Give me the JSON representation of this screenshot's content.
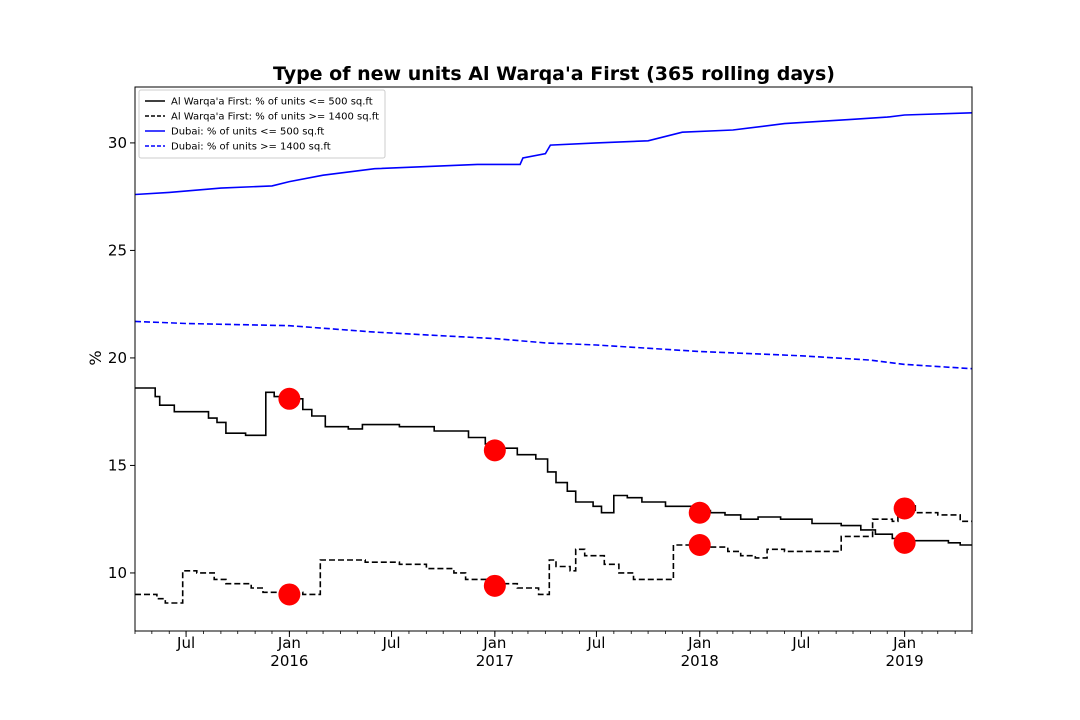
{
  "chart_data": {
    "type": "line",
    "title": "Type of new units Al Warqa'a First (365 rolling days)",
    "xlabel": "",
    "ylabel": "%",
    "xlim": [
      "2015-04-01",
      "2019-05-01"
    ],
    "ylim": [
      7.3,
      32.6
    ],
    "yticks": [
      10,
      15,
      20,
      25,
      30
    ],
    "xticks": [
      {
        "date": "2015-07-01",
        "label": "Jul",
        "sub": ""
      },
      {
        "date": "2016-01-01",
        "label": "Jan",
        "sub": "2016"
      },
      {
        "date": "2016-07-01",
        "label": "Jul",
        "sub": ""
      },
      {
        "date": "2017-01-01",
        "label": "Jan",
        "sub": "2017"
      },
      {
        "date": "2017-07-01",
        "label": "Jul",
        "sub": ""
      },
      {
        "date": "2018-01-01",
        "label": "Jan",
        "sub": "2018"
      },
      {
        "date": "2018-07-01",
        "label": "Jul",
        "sub": ""
      },
      {
        "date": "2019-01-01",
        "label": "Jan",
        "sub": "2019"
      }
    ],
    "grid": false,
    "legend_position": "top-left",
    "series": [
      {
        "name": "Al Warqa'a First: % of units <= 500 sq.ft",
        "color": "#000000",
        "style": "solid",
        "step": true,
        "points": [
          [
            "2015-04-01",
            18.6
          ],
          [
            "2015-05-01",
            18.6
          ],
          [
            "2015-05-07",
            18.2
          ],
          [
            "2015-05-15",
            17.8
          ],
          [
            "2015-06-10",
            17.5
          ],
          [
            "2015-08-10",
            17.2
          ],
          [
            "2015-08-25",
            17.0
          ],
          [
            "2015-09-10",
            16.5
          ],
          [
            "2015-10-15",
            16.4
          ],
          [
            "2015-11-20",
            18.4
          ],
          [
            "2015-12-05",
            18.2
          ],
          [
            "2016-01-05",
            18.1
          ],
          [
            "2016-01-25",
            17.6
          ],
          [
            "2016-02-10",
            17.3
          ],
          [
            "2016-03-05",
            16.8
          ],
          [
            "2016-04-15",
            16.7
          ],
          [
            "2016-05-10",
            16.9
          ],
          [
            "2016-07-15",
            16.8
          ],
          [
            "2016-09-15",
            16.6
          ],
          [
            "2016-11-15",
            16.3
          ],
          [
            "2016-12-15",
            16.0
          ],
          [
            "2017-01-10",
            15.8
          ],
          [
            "2017-02-10",
            15.5
          ],
          [
            "2017-03-15",
            15.3
          ],
          [
            "2017-04-05",
            14.7
          ],
          [
            "2017-04-20",
            14.2
          ],
          [
            "2017-05-10",
            13.8
          ],
          [
            "2017-05-25",
            13.3
          ],
          [
            "2017-06-25",
            13.1
          ],
          [
            "2017-07-10",
            12.8
          ],
          [
            "2017-08-01",
            13.6
          ],
          [
            "2017-08-25",
            13.5
          ],
          [
            "2017-09-20",
            13.3
          ],
          [
            "2017-11-01",
            13.1
          ],
          [
            "2017-12-20",
            12.9
          ],
          [
            "2018-01-20",
            12.8
          ],
          [
            "2018-02-15",
            12.7
          ],
          [
            "2018-03-15",
            12.5
          ],
          [
            "2018-04-15",
            12.6
          ],
          [
            "2018-05-25",
            12.5
          ],
          [
            "2018-07-20",
            12.3
          ],
          [
            "2018-09-10",
            12.2
          ],
          [
            "2018-10-15",
            12.0
          ],
          [
            "2018-11-10",
            11.8
          ],
          [
            "2018-12-10",
            11.6
          ],
          [
            "2019-01-10",
            11.5
          ],
          [
            "2019-02-20",
            11.5
          ],
          [
            "2019-03-20",
            11.4
          ],
          [
            "2019-04-10",
            11.3
          ],
          [
            "2019-05-01",
            11.3
          ]
        ]
      },
      {
        "name": "Al Warqa'a First: % of units >= 1400 sq.ft",
        "color": "#000000",
        "style": "dashed",
        "step": true,
        "points": [
          [
            "2015-04-01",
            9.0
          ],
          [
            "2015-05-10",
            8.8
          ],
          [
            "2015-05-25",
            8.6
          ],
          [
            "2015-06-25",
            10.1
          ],
          [
            "2015-07-20",
            10.0
          ],
          [
            "2015-08-20",
            9.7
          ],
          [
            "2015-09-10",
            9.5
          ],
          [
            "2015-10-25",
            9.3
          ],
          [
            "2015-11-15",
            9.1
          ],
          [
            "2015-12-15",
            9.0
          ],
          [
            "2016-01-15",
            9.1
          ],
          [
            "2016-01-25",
            9.0
          ],
          [
            "2016-02-25",
            10.6
          ],
          [
            "2016-03-20",
            10.6
          ],
          [
            "2016-04-15",
            10.6
          ],
          [
            "2016-05-15",
            10.5
          ],
          [
            "2016-07-15",
            10.4
          ],
          [
            "2016-09-01",
            10.2
          ],
          [
            "2016-10-20",
            10.0
          ],
          [
            "2016-11-10",
            9.7
          ],
          [
            "2017-01-01",
            9.5
          ],
          [
            "2017-02-10",
            9.3
          ],
          [
            "2017-03-20",
            9.0
          ],
          [
            "2017-04-08",
            10.6
          ],
          [
            "2017-04-20",
            10.3
          ],
          [
            "2017-05-15",
            10.1
          ],
          [
            "2017-05-25",
            11.1
          ],
          [
            "2017-06-10",
            10.8
          ],
          [
            "2017-07-15",
            10.4
          ],
          [
            "2017-08-10",
            10.0
          ],
          [
            "2017-09-05",
            9.7
          ],
          [
            "2017-11-15",
            11.3
          ],
          [
            "2017-12-25",
            11.2
          ],
          [
            "2018-01-20",
            11.2
          ],
          [
            "2018-02-20",
            11.0
          ],
          [
            "2018-03-15",
            10.8
          ],
          [
            "2018-04-10",
            10.7
          ],
          [
            "2018-05-01",
            11.1
          ],
          [
            "2018-06-01",
            11.0
          ],
          [
            "2018-08-05",
            11.0
          ],
          [
            "2018-09-10",
            11.7
          ],
          [
            "2018-10-15",
            11.7
          ],
          [
            "2018-11-05",
            12.5
          ],
          [
            "2018-12-10",
            12.4
          ],
          [
            "2018-12-20",
            13.2
          ],
          [
            "2019-01-20",
            12.8
          ],
          [
            "2019-03-01",
            12.7
          ],
          [
            "2019-04-10",
            12.4
          ],
          [
            "2019-05-01",
            12.4
          ]
        ]
      },
      {
        "name": "Dubai: % of units <= 500 sq.ft",
        "color": "#0000ff",
        "style": "solid",
        "step": false,
        "points": [
          [
            "2015-04-01",
            27.6
          ],
          [
            "2015-06-01",
            27.7
          ],
          [
            "2015-09-01",
            27.9
          ],
          [
            "2015-12-01",
            28.0
          ],
          [
            "2016-01-01",
            28.2
          ],
          [
            "2016-03-01",
            28.5
          ],
          [
            "2016-06-01",
            28.8
          ],
          [
            "2016-09-01",
            28.9
          ],
          [
            "2016-12-01",
            29.0
          ],
          [
            "2017-02-15",
            29.0
          ],
          [
            "2017-02-20",
            29.3
          ],
          [
            "2017-04-01",
            29.5
          ],
          [
            "2017-04-10",
            29.9
          ],
          [
            "2017-07-01",
            30.0
          ],
          [
            "2017-10-01",
            30.1
          ],
          [
            "2017-12-01",
            30.5
          ],
          [
            "2018-03-01",
            30.6
          ],
          [
            "2018-06-01",
            30.9
          ],
          [
            "2018-10-01",
            31.1
          ],
          [
            "2018-12-01",
            31.2
          ],
          [
            "2019-01-01",
            31.3
          ],
          [
            "2019-05-01",
            31.4
          ]
        ]
      },
      {
        "name": "Dubai: % of units >= 1400 sq.ft",
        "color": "#0000ff",
        "style": "dashed",
        "step": false,
        "points": [
          [
            "2015-04-01",
            21.7
          ],
          [
            "2015-07-01",
            21.6
          ],
          [
            "2016-01-01",
            21.5
          ],
          [
            "2016-06-01",
            21.2
          ],
          [
            "2017-01-01",
            20.9
          ],
          [
            "2017-04-01",
            20.7
          ],
          [
            "2017-07-01",
            20.6
          ],
          [
            "2018-01-01",
            20.3
          ],
          [
            "2018-07-01",
            20.1
          ],
          [
            "2018-11-01",
            19.9
          ],
          [
            "2019-01-01",
            19.7
          ],
          [
            "2019-05-01",
            19.5
          ]
        ]
      }
    ],
    "markers": {
      "color": "#ff0000",
      "points": [
        [
          "2016-01-01",
          18.1
        ],
        [
          "2016-01-01",
          9.0
        ],
        [
          "2017-01-01",
          15.7
        ],
        [
          "2017-01-01",
          9.4
        ],
        [
          "2018-01-01",
          12.8
        ],
        [
          "2018-01-01",
          11.3
        ],
        [
          "2019-01-01",
          13.0
        ],
        [
          "2019-01-01",
          11.4
        ]
      ]
    }
  }
}
